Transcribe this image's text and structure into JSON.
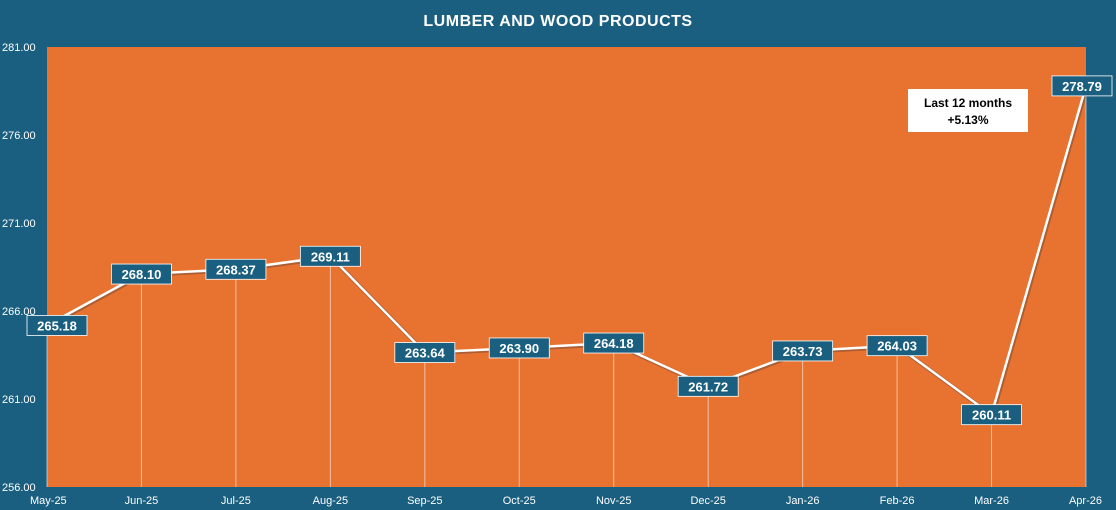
{
  "chart_data": {
    "type": "line",
    "title": "LUMBER AND WOOD PRODUCTS",
    "categories": [
      "May-25",
      "Jun-25",
      "Jul-25",
      "Aug-25",
      "Sep-25",
      "Oct-25",
      "Nov-25",
      "Dec-25",
      "Jan-26",
      "Feb-26",
      "Mar-26",
      "Apr-26"
    ],
    "values": [
      265.18,
      268.1,
      268.37,
      269.11,
      263.64,
      263.9,
      264.18,
      261.72,
      263.73,
      264.03,
      260.11,
      278.79
    ],
    "data_labels": [
      "265.18",
      "268.10",
      "268.37",
      "269.11",
      "263.64",
      "263.90",
      "264.18",
      "261.72",
      "263.73",
      "264.03",
      "260.11",
      "278.79"
    ],
    "y_ticks": [
      "256.00",
      "261.00",
      "266.00",
      "271.00",
      "276.00",
      "281.00"
    ],
    "ylim": [
      256,
      281
    ],
    "grid": false,
    "drop_lines": true,
    "annotation": {
      "line1": "Last 12 months",
      "line2": "+5.13%"
    },
    "colors": {
      "background": "#1a5f80",
      "plot_area": "#e87230",
      "line": "#ffffff",
      "label_box": "#1a5f80",
      "annotation_box": "#ffffff"
    }
  }
}
